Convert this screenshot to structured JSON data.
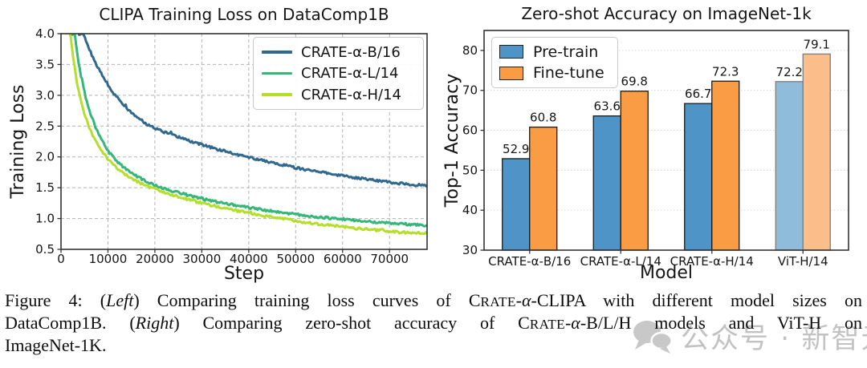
{
  "figure": {
    "caption": {
      "lines": [
        [
          {
            "t": "Figure 4: ("
          },
          {
            "t": "Left",
            "i": 1
          },
          {
            "t": ") Comparing training loss curves of "
          },
          {
            "t": "CRATE",
            "sc": 1
          },
          {
            "t": "-"
          },
          {
            "t": "α",
            "i": 1
          },
          {
            "t": "-CLIPA with different model sizes on"
          }
        ],
        [
          {
            "t": "DataComp1B. ("
          },
          {
            "t": "Right",
            "i": 1
          },
          {
            "t": ") Comparing zero-shot accuracy of "
          },
          {
            "t": "CRATE",
            "sc": 1
          },
          {
            "t": "-"
          },
          {
            "t": "α",
            "i": 1
          },
          {
            "t": "-B/L/H models and ViT-H on"
          }
        ],
        [
          {
            "t": "ImageNet-1K."
          }
        ]
      ]
    },
    "watermark": {
      "icon": "chat-bubbles-icon",
      "text": "公众号 · 新智元",
      "color": "#9e9e9e"
    }
  },
  "chart_data": [
    {
      "type": "line",
      "title": "CLIPA Training Loss on DataComp1B",
      "xlabel": "Step",
      "ylabel": "Training Loss",
      "xlim": [
        0,
        78000
      ],
      "ylim": [
        0.5,
        4.0
      ],
      "xticks": [
        "0",
        "10000",
        "20000",
        "30000",
        "40000",
        "50000",
        "60000",
        "70000"
      ],
      "yticks": [
        "0.5",
        "1.0",
        "1.5",
        "2.0",
        "2.5",
        "3.0",
        "3.5",
        "4.0"
      ],
      "grid": "dashed-both",
      "legend_position": "upper right",
      "series": [
        {
          "name": "CRATE-α-B/16",
          "color": "#31688e",
          "points": [
            [
              4800,
              4.0
            ],
            [
              6000,
              3.75
            ],
            [
              7500,
              3.5
            ],
            [
              9000,
              3.3
            ],
            [
              11000,
              3.05
            ],
            [
              13000,
              2.87
            ],
            [
              15000,
              2.72
            ],
            [
              17000,
              2.6
            ],
            [
              19000,
              2.5
            ],
            [
              21000,
              2.43
            ],
            [
              24000,
              2.35
            ],
            [
              27000,
              2.27
            ],
            [
              30000,
              2.2
            ],
            [
              33000,
              2.13
            ],
            [
              36000,
              2.07
            ],
            [
              39000,
              2.01
            ],
            [
              42000,
              1.96
            ],
            [
              45000,
              1.91
            ],
            [
              48000,
              1.86
            ],
            [
              51000,
              1.81
            ],
            [
              54000,
              1.77
            ],
            [
              57000,
              1.73
            ],
            [
              60000,
              1.7
            ],
            [
              63000,
              1.66
            ],
            [
              66000,
              1.63
            ],
            [
              69000,
              1.6
            ],
            [
              72000,
              1.57
            ],
            [
              75000,
              1.55
            ],
            [
              78000,
              1.53
            ]
          ]
        },
        {
          "name": "CRATE-α-L/14",
          "color": "#35b779",
          "points": [
            [
              2900,
              4.0
            ],
            [
              3600,
              3.6
            ],
            [
              4400,
              3.25
            ],
            [
              5300,
              2.95
            ],
            [
              6300,
              2.7
            ],
            [
              7500,
              2.45
            ],
            [
              9000,
              2.22
            ],
            [
              10500,
              2.05
            ],
            [
              12000,
              1.92
            ],
            [
              14000,
              1.79
            ],
            [
              16000,
              1.69
            ],
            [
              18500,
              1.59
            ],
            [
              21000,
              1.51
            ],
            [
              24000,
              1.44
            ],
            [
              27000,
              1.38
            ],
            [
              30000,
              1.32
            ],
            [
              33000,
              1.27
            ],
            [
              36000,
              1.23
            ],
            [
              39000,
              1.19
            ],
            [
              42000,
              1.15
            ],
            [
              45000,
              1.12
            ],
            [
              48000,
              1.09
            ],
            [
              51000,
              1.06
            ],
            [
              54000,
              1.03
            ],
            [
              57000,
              1.01
            ],
            [
              60000,
              0.99
            ],
            [
              63000,
              0.97
            ],
            [
              66000,
              0.95
            ],
            [
              69000,
              0.93
            ],
            [
              72000,
              0.92
            ],
            [
              75000,
              0.9
            ],
            [
              78000,
              0.89
            ]
          ]
        },
        {
          "name": "CRATE-α-H/14",
          "color": "#b5de2b",
          "points": [
            [
              2000,
              4.0
            ],
            [
              2600,
              3.6
            ],
            [
              3300,
              3.25
            ],
            [
              4100,
              2.95
            ],
            [
              5000,
              2.7
            ],
            [
              6000,
              2.48
            ],
            [
              7200,
              2.28
            ],
            [
              8600,
              2.1
            ],
            [
              10000,
              1.97
            ],
            [
              11800,
              1.83
            ],
            [
              13800,
              1.71
            ],
            [
              16000,
              1.61
            ],
            [
              18500,
              1.52
            ],
            [
              21000,
              1.45
            ],
            [
              24000,
              1.38
            ],
            [
              27000,
              1.31
            ],
            [
              30000,
              1.25
            ],
            [
              33000,
              1.2
            ],
            [
              36000,
              1.15
            ],
            [
              39000,
              1.1
            ],
            [
              42000,
              1.06
            ],
            [
              45000,
              1.02
            ],
            [
              48000,
              0.99
            ],
            [
              51000,
              0.95
            ],
            [
              54000,
              0.92
            ],
            [
              57000,
              0.89
            ],
            [
              60000,
              0.87
            ],
            [
              63000,
              0.84
            ],
            [
              66000,
              0.82
            ],
            [
              69000,
              0.8
            ],
            [
              72000,
              0.78
            ],
            [
              75000,
              0.77
            ],
            [
              78000,
              0.76
            ]
          ]
        }
      ]
    },
    {
      "type": "bar",
      "title": "Zero-shot Accuracy on ImageNet-1k",
      "xlabel": "Model",
      "ylabel": "Top-1 Accuracy",
      "ylim": [
        30,
        85
      ],
      "yticks": [
        "30",
        "40",
        "50",
        "60",
        "70",
        "80"
      ],
      "categories": [
        "CRATE-α-B/16",
        "CRATE-α-L/14",
        "CRATE-α-H/14",
        "ViT-H/14"
      ],
      "grid": "dotted-horizontal",
      "legend_position": "upper left",
      "muted_category_index": 3,
      "series": [
        {
          "name": "Pre-train",
          "color": "#4f94c7",
          "muted_color": "#8fbcdb",
          "values": [
            52.9,
            63.6,
            66.7,
            72.2
          ]
        },
        {
          "name": "Fine-tune",
          "color": "#fa9c44",
          "muted_color": "#fbbe8a",
          "values": [
            60.8,
            69.8,
            72.3,
            79.1
          ]
        }
      ]
    }
  ]
}
